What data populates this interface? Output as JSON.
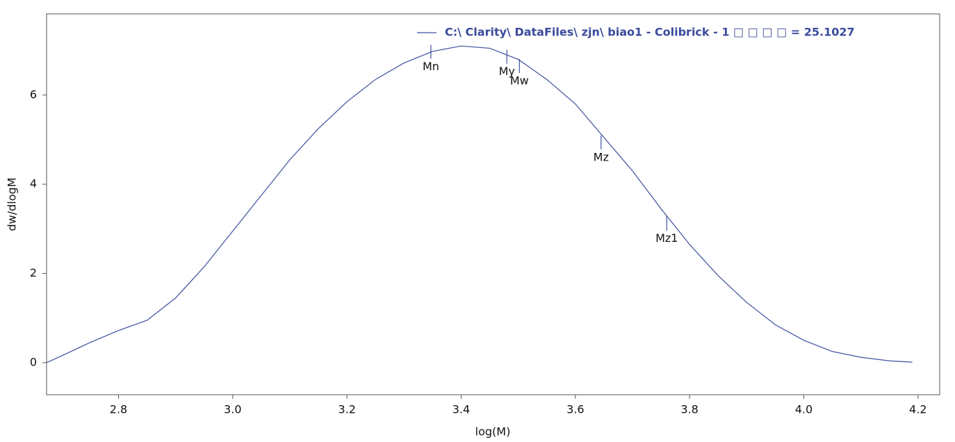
{
  "chart_data": {
    "type": "line",
    "x_label": "log(M)",
    "y_label": "dw/dlogM",
    "x": [
      2.674,
      2.7,
      2.75,
      2.8,
      2.85,
      2.9,
      2.95,
      3.0,
      3.05,
      3.1,
      3.15,
      3.2,
      3.25,
      3.3,
      3.35,
      3.4,
      3.45,
      3.5,
      3.55,
      3.6,
      3.65,
      3.7,
      3.75,
      3.8,
      3.85,
      3.9,
      3.95,
      4.0,
      4.05,
      4.1,
      4.15,
      4.19
    ],
    "series": [
      {
        "name": "C:\\ Clarity\\ DataFiles\\ zjn\\ biao1 - Colibrick - 1 □ □ □ □ = 25.1027",
        "color": "#3d4f9f",
        "values": [
          0.0,
          0.15,
          0.45,
          0.72,
          0.95,
          1.45,
          2.15,
          2.95,
          3.75,
          4.55,
          5.25,
          5.85,
          6.35,
          6.72,
          6.98,
          7.1,
          7.05,
          6.8,
          6.35,
          5.8,
          5.05,
          4.3,
          3.45,
          2.65,
          1.95,
          1.35,
          0.85,
          0.5,
          0.25,
          0.12,
          0.04,
          0.01
        ]
      }
    ],
    "annotations": [
      {
        "text": "Mn",
        "x": 3.347,
        "y": 6.97
      },
      {
        "text": "My",
        "x": 3.48,
        "y": 6.86
      },
      {
        "text": "Mw",
        "x": 3.502,
        "y": 6.65
      },
      {
        "text": "Mz",
        "x": 3.645,
        "y": 4.94
      },
      {
        "text": "Mz1",
        "x": 3.76,
        "y": 3.12
      }
    ],
    "xlim": [
      2.674,
      4.238
    ],
    "ylim": [
      -0.72,
      7.82
    ],
    "xticks": [
      2.8,
      {
        "value": 3,
        "label": "3.0"
      },
      3.2,
      3.4,
      3.6,
      3.8,
      {
        "value": 4,
        "label": "4.0"
      },
      4.2
    ],
    "yticks": [
      0,
      2,
      4,
      6
    ],
    "legend": "top-right"
  }
}
